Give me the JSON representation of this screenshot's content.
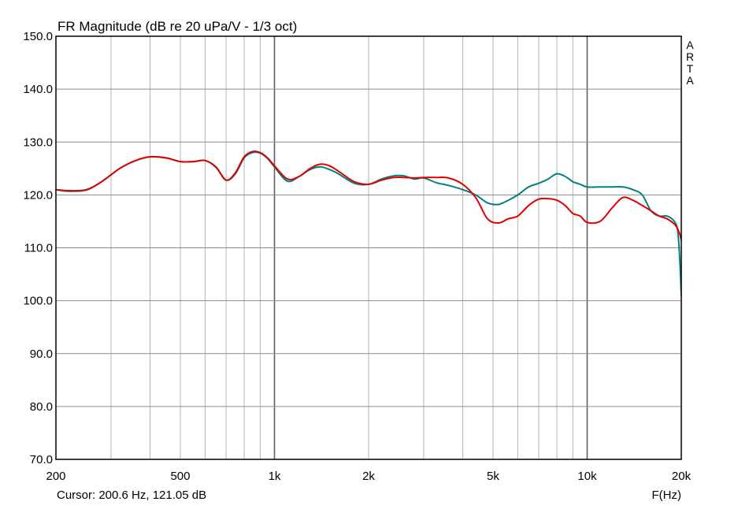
{
  "chart_data": {
    "type": "line",
    "title": "FR Magnitude (dB re 20 uPa/V - 1/3 oct)",
    "xlabel": "F(Hz)",
    "ylabel": "",
    "x_scale": "log",
    "xlim": [
      200,
      20000
    ],
    "ylim": [
      70,
      150
    ],
    "grid": true,
    "x_major_ticks": [
      {
        "value": 200,
        "label": "200"
      },
      {
        "value": 500,
        "label": "500"
      },
      {
        "value": 1000,
        "label": "1k"
      },
      {
        "value": 2000,
        "label": "2k"
      },
      {
        "value": 5000,
        "label": "5k"
      },
      {
        "value": 10000,
        "label": "10k"
      },
      {
        "value": 20000,
        "label": "20k"
      }
    ],
    "x_grid_values": [
      200,
      300,
      400,
      500,
      600,
      700,
      800,
      900,
      1000,
      2000,
      3000,
      4000,
      5000,
      6000,
      7000,
      8000,
      9000,
      10000,
      20000
    ],
    "x_heavy_grid_values": [
      1000,
      10000
    ],
    "y_ticks": [
      {
        "value": 150,
        "label": "150.0"
      },
      {
        "value": 140,
        "label": "140.0"
      },
      {
        "value": 130,
        "label": "130.0"
      },
      {
        "value": 120,
        "label": "120.0"
      },
      {
        "value": 110,
        "label": "110.0"
      },
      {
        "value": 100,
        "label": "100.0"
      },
      {
        "value": 90,
        "label": "90.0"
      },
      {
        "value": 80,
        "label": "80.0"
      },
      {
        "value": 70,
        "label": "70.0"
      }
    ],
    "side_label": [
      "A",
      "R",
      "T",
      "A"
    ],
    "cursor_text": "Cursor: 200.6 Hz, 121.05 dB",
    "series": [
      {
        "color": "#008080",
        "x": [
          200,
          220,
          250,
          280,
          320,
          360,
          400,
          450,
          500,
          550,
          600,
          650,
          700,
          750,
          800,
          850,
          900,
          950,
          1000,
          1100,
          1200,
          1300,
          1400,
          1500,
          1600,
          1800,
          2000,
          2200,
          2400,
          2600,
          2800,
          3000,
          3300,
          3600,
          4000,
          4400,
          4800,
          5200,
          5600,
          6000,
          6500,
          7000,
          7500,
          8000,
          8500,
          9000,
          9500,
          10000,
          11000,
          12000,
          13000,
          14000,
          15000,
          16000,
          17000,
          18000,
          19000,
          19500,
          19800,
          20000
        ],
        "y": [
          121.0,
          120.7,
          120.9,
          122.5,
          125.0,
          126.5,
          127.2,
          127.0,
          126.3,
          126.3,
          126.5,
          125.2,
          122.8,
          124.0,
          127.0,
          128.0,
          127.9,
          126.9,
          125.3,
          122.6,
          123.5,
          124.8,
          125.3,
          124.8,
          124.0,
          122.2,
          122.0,
          123.0,
          123.6,
          123.6,
          123.0,
          123.2,
          122.3,
          121.8,
          121.0,
          120.0,
          118.5,
          118.2,
          119.0,
          120.0,
          121.5,
          122.2,
          123.0,
          124.0,
          123.5,
          122.5,
          122.0,
          121.5,
          121.5,
          121.5,
          121.5,
          121.0,
          120.0,
          117.0,
          116.0,
          116.0,
          115.0,
          113.0,
          107.0,
          101.0
        ]
      },
      {
        "color": "#e00000",
        "x": [
          200,
          220,
          250,
          280,
          320,
          360,
          400,
          450,
          500,
          550,
          600,
          650,
          700,
          750,
          800,
          850,
          900,
          950,
          1000,
          1100,
          1200,
          1300,
          1400,
          1500,
          1600,
          1800,
          2000,
          2200,
          2400,
          2600,
          2800,
          3000,
          3300,
          3600,
          4000,
          4400,
          4800,
          5200,
          5600,
          6000,
          6500,
          7000,
          7500,
          8000,
          8500,
          9000,
          9500,
          10000,
          11000,
          12000,
          13000,
          14000,
          15000,
          16000,
          17000,
          18000,
          19000,
          19500,
          19800,
          20000
        ],
        "y": [
          121.0,
          120.8,
          121.0,
          122.5,
          125.0,
          126.5,
          127.2,
          127.0,
          126.3,
          126.3,
          126.5,
          125.3,
          122.8,
          124.2,
          127.2,
          128.2,
          128.0,
          127.0,
          125.5,
          123.0,
          123.5,
          125.0,
          125.8,
          125.5,
          124.5,
          122.5,
          122.0,
          122.8,
          123.3,
          123.3,
          123.2,
          123.3,
          123.3,
          123.2,
          122.0,
          119.5,
          115.5,
          114.7,
          115.5,
          116.0,
          118.0,
          119.2,
          119.3,
          119.0,
          118.0,
          116.5,
          116.0,
          114.8,
          115.0,
          117.5,
          119.5,
          119.0,
          118.0,
          117.0,
          116.0,
          115.5,
          114.5,
          113.5,
          112.5,
          111.5
        ]
      }
    ]
  }
}
